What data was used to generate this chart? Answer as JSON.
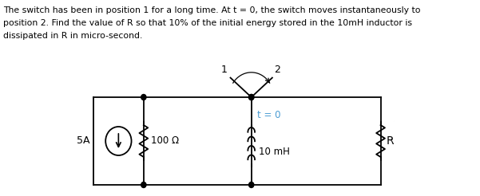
{
  "text_lines": [
    "The switch has been in position 1 for a long time. At t = 0, the switch moves instantaneously to",
    "position 2. Find the value of R so that 10% of the initial energy stored in the 10mH inductor is",
    "dissipated in R in micro-second."
  ],
  "background_color": "#ffffff",
  "text_color": "#000000",
  "circuit": {
    "source_label": "5A",
    "r1_label": "100 Ω",
    "l_label": "10 mH",
    "r2_label": "R",
    "t0_label": "t = 0",
    "pos1_label": "1",
    "pos2_label": "2"
  }
}
